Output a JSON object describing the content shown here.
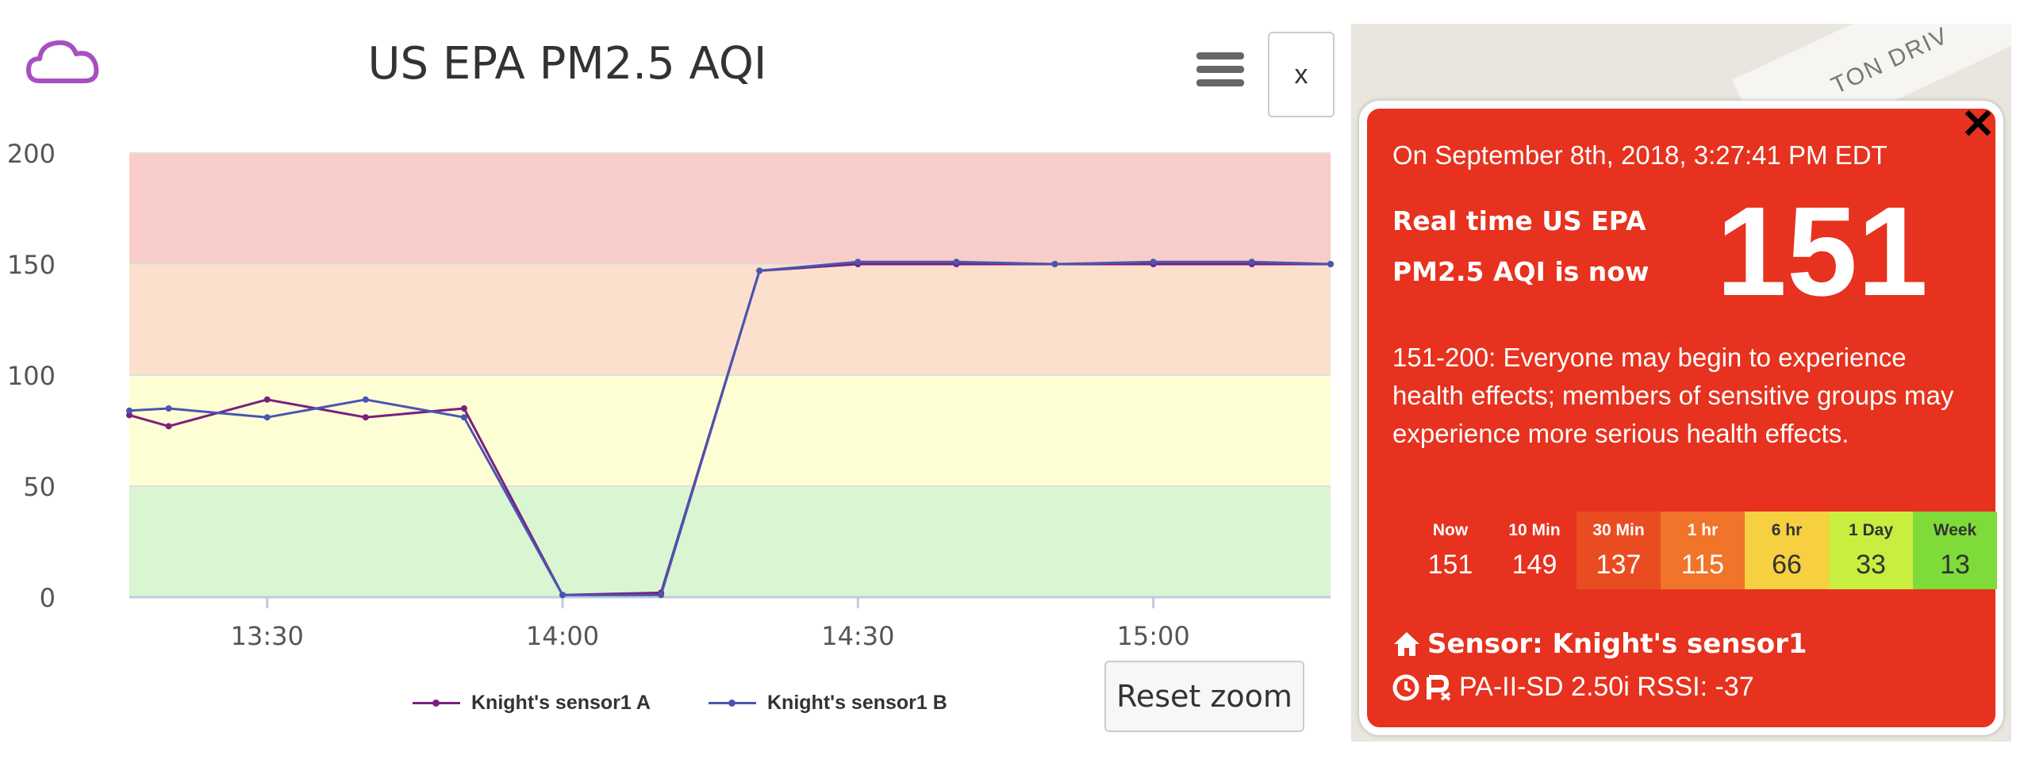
{
  "chart": {
    "title": "US EPA PM2.5 AQI",
    "reset_zoom_label": "Reset zoom",
    "close_label": "x",
    "cloud_icon": "cloud-icon",
    "menu_icon": "hamburger-menu-icon"
  },
  "chart_data": {
    "type": "line",
    "title": "US EPA PM2.5 AQI",
    "xlabel": "",
    "ylabel": "",
    "ylim": [
      0,
      200
    ],
    "y_ticks": [
      0,
      50,
      100,
      150,
      200
    ],
    "xlim": [
      "13:16",
      "15:18"
    ],
    "x_ticks": [
      "13:30",
      "14:00",
      "14:30",
      "15:00"
    ],
    "grid": true,
    "legend": "bottom-center",
    "bands": [
      {
        "from": 0,
        "to": 50,
        "color": "#d9f5d1"
      },
      {
        "from": 50,
        "to": 100,
        "color": "#fefed4"
      },
      {
        "from": 100,
        "to": 150,
        "color": "#fbe0ce"
      },
      {
        "from": 150,
        "to": 200,
        "color": "#f8ccc8"
      }
    ],
    "series": [
      {
        "name": "Knight's sensor1 A",
        "color": "#7b1f7f",
        "points": [
          [
            "13:16",
            82
          ],
          [
            "13:20",
            77
          ],
          [
            "13:30",
            89
          ],
          [
            "13:40",
            81
          ],
          [
            "13:50",
            85
          ],
          [
            "14:00",
            1
          ],
          [
            "14:10",
            2
          ],
          [
            "14:20",
            147
          ],
          [
            "14:30",
            150
          ],
          [
            "14:40",
            150
          ],
          [
            "14:50",
            150
          ],
          [
            "15:00",
            150
          ],
          [
            "15:10",
            150
          ],
          [
            "15:18",
            150
          ]
        ]
      },
      {
        "name": "Knight's sensor1 B",
        "color": "#4a55b0",
        "points": [
          [
            "13:16",
            84
          ],
          [
            "13:20",
            85
          ],
          [
            "13:30",
            81
          ],
          [
            "13:40",
            89
          ],
          [
            "13:50",
            81
          ],
          [
            "14:00",
            1
          ],
          [
            "14:10",
            1
          ],
          [
            "14:20",
            147
          ],
          [
            "14:30",
            151
          ],
          [
            "14:40",
            151
          ],
          [
            "14:50",
            150
          ],
          [
            "15:00",
            151
          ],
          [
            "15:10",
            151
          ],
          [
            "15:18",
            150
          ]
        ]
      }
    ]
  },
  "map": {
    "road_label": "TON DRIV"
  },
  "popup": {
    "close_label": "✕",
    "date_line": "On September 8th, 2018, 3:27:41 PM EDT",
    "label_line1": "Real time US EPA",
    "label_line2": "PM2.5 AQI is now",
    "aqi_value": "151",
    "description": "151-200: Everyone may begin to experience health effects; members of sensitive groups may experience more serious health effects.",
    "stats": [
      {
        "label": "Now",
        "value": "151",
        "bg": "#e6321e",
        "fg": "#ffffff"
      },
      {
        "label": "10 Min",
        "value": "149",
        "bg": "#e6321e",
        "fg": "#ffffff"
      },
      {
        "label": "30 Min",
        "value": "137",
        "bg": "#ea4c22",
        "fg": "#ffffff"
      },
      {
        "label": "1 hr",
        "value": "115",
        "bg": "#f0742a",
        "fg": "#ffffff"
      },
      {
        "label": "6 hr",
        "value": "66",
        "bg": "#f6d040",
        "fg": "#333333"
      },
      {
        "label": "1 Day",
        "value": "33",
        "bg": "#c8ee40",
        "fg": "#333333"
      },
      {
        "label": "Week",
        "value": "13",
        "bg": "#7fdb3a",
        "fg": "#333333"
      }
    ],
    "sensor_line": "Sensor: Knight's sensor1",
    "device_line": "PA-II-SD 2.50i RSSI: -37",
    "home_icon": "home-icon",
    "clock_icon": "clock-icon",
    "signal_icon": "signal-icon"
  }
}
